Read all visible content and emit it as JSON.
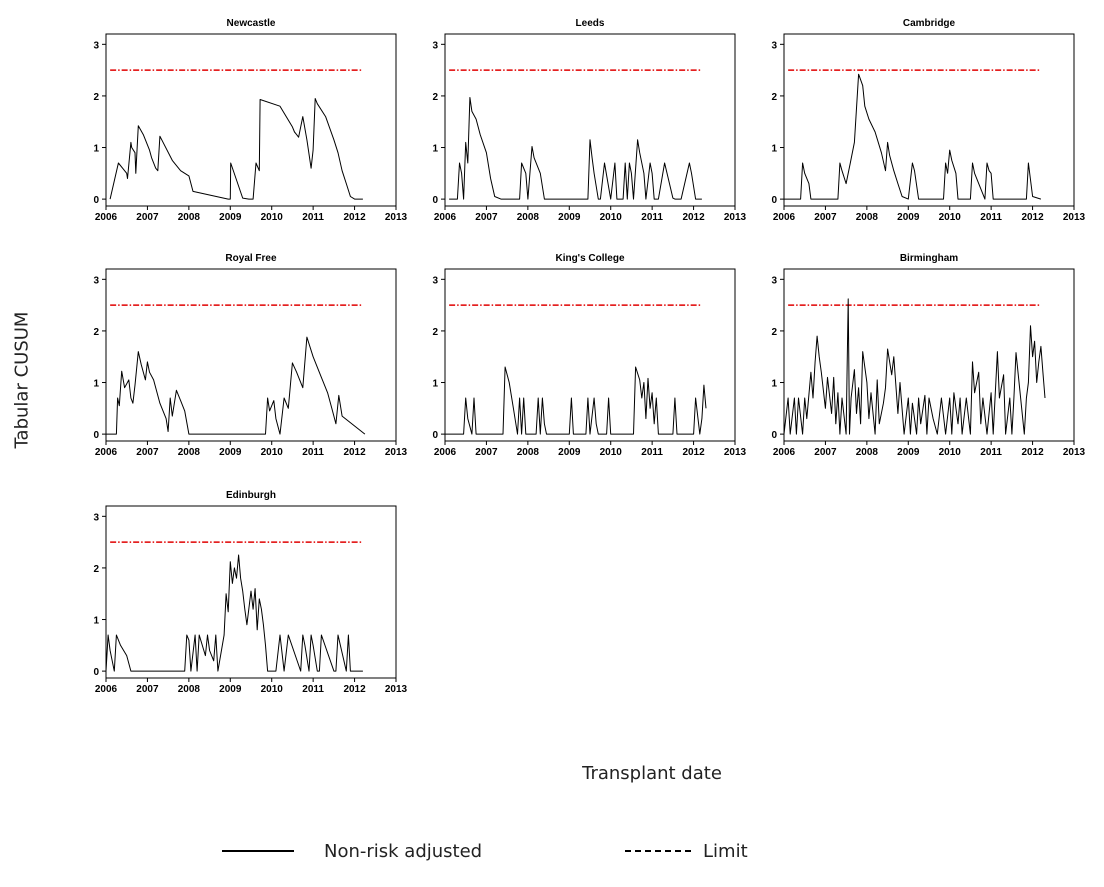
{
  "figure": {
    "ylabel": "Tabular CUSUM",
    "xlabel": "Transplant date",
    "legend": [
      {
        "label": "Non-risk adjusted",
        "style": "solid",
        "color": "#000000"
      },
      {
        "label": "Limit",
        "style": "dash-dot",
        "color": "#000000"
      }
    ],
    "limit_color": "#e00000",
    "series_color": "#000000"
  },
  "chart_data": [
    {
      "type": "line",
      "title": "Newcastle",
      "xlim": [
        2006,
        2013
      ],
      "ylim": [
        0,
        3
      ],
      "xticks": [
        2006,
        2007,
        2008,
        2009,
        2010,
        2011,
        2012,
        2013
      ],
      "yticks": [
        0,
        1,
        2,
        3
      ],
      "limit": 2.5,
      "series": [
        {
          "x": [
            2006.1,
            2006.3,
            2006.4,
            2006.5,
            2006.52,
            2006.6,
            2006.62,
            2006.7,
            2006.72,
            2006.78,
            2006.9,
            2007.05,
            2007.1,
            2007.2,
            2007.25,
            2007.3,
            2007.6,
            2007.8,
            2008.0,
            2008.1,
            2008.95,
            2009.0,
            2009.01,
            2009.3,
            2009.45,
            2009.55,
            2009.62,
            2009.7,
            2009.72,
            2010.2,
            2010.5,
            2010.55,
            2010.6,
            2010.65,
            2010.75,
            2010.85,
            2010.95,
            2011.0,
            2011.05,
            2011.1,
            2011.3,
            2011.5,
            2011.6,
            2011.7,
            2011.8,
            2011.9,
            2012.0,
            2012.2
          ],
          "y": [
            0,
            0.7,
            0.6,
            0.5,
            0.4,
            1.1,
            1.0,
            0.9,
            0.5,
            1.42,
            1.25,
            0.95,
            0.8,
            0.6,
            0.55,
            1.22,
            0.75,
            0.55,
            0.45,
            0.15,
            0,
            0,
            0.7,
            0.02,
            0,
            0,
            0.7,
            0.55,
            1.93,
            1.8,
            1.4,
            1.3,
            1.25,
            1.2,
            1.6,
            1.15,
            0.6,
            0.95,
            1.95,
            1.85,
            1.6,
            1.15,
            0.9,
            0.55,
            0.3,
            0.05,
            0,
            0
          ]
        }
      ]
    },
    {
      "type": "line",
      "title": "Leeds",
      "xlim": [
        2006,
        2013
      ],
      "ylim": [
        0,
        3
      ],
      "xticks": [
        2006,
        2007,
        2008,
        2009,
        2010,
        2011,
        2012,
        2013
      ],
      "yticks": [
        0,
        1,
        2,
        3
      ],
      "limit": 2.5,
      "series": [
        {
          "x": [
            2006.1,
            2006.3,
            2006.35,
            2006.4,
            2006.45,
            2006.5,
            2006.55,
            2006.6,
            2006.65,
            2006.75,
            2006.85,
            2007.0,
            2007.1,
            2007.2,
            2007.35,
            2007.8,
            2007.85,
            2007.95,
            2008.0,
            2008.1,
            2008.15,
            2008.3,
            2008.4,
            2009.45,
            2009.5,
            2009.55,
            2009.6,
            2009.7,
            2009.75,
            2009.85,
            2010.0,
            2010.1,
            2010.15,
            2010.3,
            2010.35,
            2010.4,
            2010.45,
            2010.5,
            2010.55,
            2010.65,
            2010.7,
            2010.8,
            2010.85,
            2010.95,
            2011.0,
            2011.05,
            2011.15,
            2011.3,
            2011.5,
            2011.55,
            2011.7,
            2011.9,
            2011.95,
            2012.05,
            2012.1,
            2012.15,
            2012.2
          ],
          "y": [
            0,
            0,
            0.7,
            0.5,
            0,
            1.1,
            0.7,
            1.97,
            1.7,
            1.55,
            1.25,
            0.9,
            0.4,
            0.05,
            0,
            0,
            0.7,
            0.5,
            0,
            1.02,
            0.8,
            0.5,
            0,
            0,
            1.15,
            0.8,
            0.5,
            0,
            0,
            0.7,
            0,
            0.7,
            0,
            0,
            0.7,
            0,
            0.7,
            0.5,
            0,
            1.15,
            0.9,
            0.5,
            0,
            0.7,
            0.5,
            0,
            0,
            0.7,
            0.02,
            0,
            0,
            0.7,
            0.5,
            0,
            0,
            0,
            0
          ]
        }
      ]
    },
    {
      "type": "line",
      "title": "Cambridge",
      "xlim": [
        2006,
        2013
      ],
      "ylim": [
        0,
        3
      ],
      "xticks": [
        2006,
        2007,
        2008,
        2009,
        2010,
        2011,
        2012,
        2013
      ],
      "yticks": [
        0,
        1,
        2,
        3
      ],
      "limit": 2.5,
      "series": [
        {
          "x": [
            2006.0,
            2006.4,
            2006.45,
            2006.5,
            2006.6,
            2006.65,
            2007.3,
            2007.35,
            2007.4,
            2007.5,
            2007.6,
            2007.7,
            2007.8,
            2007.9,
            2007.95,
            2008.05,
            2008.2,
            2008.35,
            2008.45,
            2008.5,
            2008.55,
            2008.65,
            2008.75,
            2008.85,
            2009.0,
            2009.1,
            2009.15,
            2009.25,
            2009.85,
            2009.9,
            2009.95,
            2010.0,
            2010.05,
            2010.15,
            2010.2,
            2010.5,
            2010.55,
            2010.6,
            2010.85,
            2010.9,
            2010.95,
            2011.0,
            2011.05,
            2011.85,
            2011.9,
            2012.0,
            2012.2
          ],
          "y": [
            0,
            0,
            0.7,
            0.5,
            0.3,
            0,
            0,
            0.7,
            0.55,
            0.3,
            0.7,
            1.1,
            2.42,
            2.2,
            1.8,
            1.55,
            1.3,
            0.9,
            0.55,
            1.1,
            0.85,
            0.55,
            0.3,
            0.05,
            0,
            0.7,
            0.55,
            0,
            0,
            0.7,
            0.5,
            0.95,
            0.75,
            0.5,
            0,
            0,
            0.7,
            0.5,
            0,
            0.7,
            0.55,
            0.5,
            0,
            0,
            0.7,
            0.05,
            0
          ]
        }
      ]
    },
    {
      "type": "line",
      "title": "Royal Free",
      "xlim": [
        2006,
        2013
      ],
      "ylim": [
        0,
        3
      ],
      "xticks": [
        2006,
        2007,
        2008,
        2009,
        2010,
        2011,
        2012,
        2013
      ],
      "yticks": [
        0,
        1,
        2,
        3
      ],
      "limit": 2.5,
      "series": [
        {
          "x": [
            2006.0,
            2006.25,
            2006.28,
            2006.32,
            2006.38,
            2006.45,
            2006.55,
            2006.6,
            2006.65,
            2006.7,
            2006.78,
            2006.85,
            2006.95,
            2007.0,
            2007.05,
            2007.15,
            2007.3,
            2007.45,
            2007.5,
            2007.55,
            2007.6,
            2007.7,
            2007.8,
            2007.9,
            2008.0,
            2009.85,
            2009.9,
            2009.95,
            2010.05,
            2010.1,
            2010.2,
            2010.3,
            2010.4,
            2010.5,
            2010.6,
            2010.75,
            2010.85,
            2011.0,
            2011.2,
            2011.35,
            2011.45,
            2011.55,
            2011.62,
            2011.7,
            2012.25
          ],
          "y": [
            0,
            0,
            0.7,
            0.55,
            1.22,
            0.9,
            1.05,
            0.7,
            0.6,
            0.95,
            1.6,
            1.35,
            1.05,
            1.4,
            1.2,
            1.05,
            0.6,
            0.3,
            0.05,
            0.7,
            0.35,
            0.85,
            0.65,
            0.45,
            0,
            0,
            0.7,
            0.45,
            0.65,
            0.3,
            0,
            0.7,
            0.5,
            1.38,
            1.2,
            0.9,
            1.88,
            1.5,
            1.1,
            0.8,
            0.5,
            0.2,
            0.75,
            0.35,
            0
          ]
        }
      ]
    },
    {
      "type": "line",
      "title": "King's College",
      "xlim": [
        2006,
        2013
      ],
      "ylim": [
        0,
        3
      ],
      "xticks": [
        2006,
        2007,
        2008,
        2009,
        2010,
        2011,
        2012,
        2013
      ],
      "yticks": [
        0,
        1,
        2,
        3
      ],
      "limit": 2.5,
      "series": [
        {
          "x": [
            2006.0,
            2006.45,
            2006.5,
            2006.55,
            2006.65,
            2006.7,
            2006.75,
            2007.4,
            2007.45,
            2007.55,
            2007.65,
            2007.75,
            2007.8,
            2007.85,
            2007.9,
            2007.95,
            2008.0,
            2008.2,
            2008.25,
            2008.3,
            2008.35,
            2008.4,
            2008.45,
            2009.0,
            2009.05,
            2009.1,
            2009.4,
            2009.45,
            2009.5,
            2009.6,
            2009.65,
            2009.7,
            2009.9,
            2009.95,
            2010.0,
            2010.55,
            2010.6,
            2010.7,
            2010.75,
            2010.8,
            2010.85,
            2010.9,
            2010.95,
            2011.0,
            2011.05,
            2011.1,
            2011.15,
            2011.5,
            2011.55,
            2011.6,
            2012.0,
            2012.05,
            2012.15,
            2012.2,
            2012.25,
            2012.3
          ],
          "y": [
            0,
            0,
            0.7,
            0.3,
            0,
            0.7,
            0,
            0,
            1.3,
            1.0,
            0.5,
            0,
            0.7,
            0,
            0.7,
            0,
            0,
            0,
            0.7,
            0,
            0.7,
            0.2,
            0,
            0,
            0.7,
            0,
            0,
            0.7,
            0,
            0.7,
            0.2,
            0,
            0,
            0.7,
            0,
            0,
            1.3,
            1.05,
            0.7,
            1.0,
            0.3,
            1.08,
            0.5,
            0.8,
            0.2,
            0.7,
            0,
            0,
            0.7,
            0,
            0,
            0.7,
            0,
            0.3,
            0.95,
            0.5
          ]
        }
      ]
    },
    {
      "type": "line",
      "title": "Birmingham",
      "xlim": [
        2006,
        2013
      ],
      "ylim": [
        0,
        3
      ],
      "xticks": [
        2006,
        2007,
        2008,
        2009,
        2010,
        2011,
        2012,
        2013
      ],
      "yticks": [
        0,
        1,
        2,
        3
      ],
      "limit": 2.5,
      "series": [
        {
          "x": [
            2006.0,
            2006.1,
            2006.15,
            2006.25,
            2006.3,
            2006.35,
            2006.45,
            2006.5,
            2006.55,
            2006.65,
            2006.7,
            2006.75,
            2006.8,
            2006.85,
            2006.9,
            2007.0,
            2007.05,
            2007.15,
            2007.2,
            2007.25,
            2007.3,
            2007.35,
            2007.4,
            2007.5,
            2007.55,
            2007.58,
            2007.62,
            2007.7,
            2007.75,
            2007.8,
            2007.85,
            2007.9,
            2008.0,
            2008.05,
            2008.1,
            2008.2,
            2008.25,
            2008.3,
            2008.4,
            2008.45,
            2008.5,
            2008.6,
            2008.65,
            2008.75,
            2008.8,
            2008.9,
            2009.0,
            2009.05,
            2009.1,
            2009.2,
            2009.25,
            2009.3,
            2009.4,
            2009.45,
            2009.5,
            2009.6,
            2009.7,
            2009.8,
            2009.9,
            2010.0,
            2010.05,
            2010.1,
            2010.2,
            2010.25,
            2010.3,
            2010.4,
            2010.5,
            2010.55,
            2010.6,
            2010.7,
            2010.75,
            2010.8,
            2010.9,
            2011.0,
            2011.05,
            2011.15,
            2011.2,
            2011.3,
            2011.35,
            2011.45,
            2011.5,
            2011.55,
            2011.6,
            2011.7,
            2011.8,
            2011.85,
            2011.9,
            2011.95,
            2012.0,
            2012.05,
            2012.1,
            2012.15,
            2012.2,
            2012.25,
            2012.3
          ],
          "y": [
            0,
            0.7,
            0,
            0.7,
            0,
            0.7,
            0,
            0.7,
            0.3,
            1.2,
            0.7,
            1.4,
            1.9,
            1.5,
            1.2,
            0.5,
            1.1,
            0.4,
            1.1,
            0.2,
            0.8,
            0,
            0.7,
            0,
            2.62,
            0,
            0.7,
            1.25,
            0.4,
            0.9,
            0.2,
            1.6,
            1.0,
            0.3,
            0.8,
            0,
            1.05,
            0.2,
            0.6,
            0.9,
            1.65,
            1.15,
            1.5,
            0.4,
            1.0,
            0,
            0.7,
            0,
            0.6,
            0,
            0.7,
            0.2,
            0.75,
            0,
            0.7,
            0.3,
            0,
            0.7,
            0,
            0.7,
            0,
            0.8,
            0.2,
            0.7,
            0,
            0.7,
            0,
            1.4,
            0.8,
            1.2,
            0.2,
            0.7,
            0,
            0.8,
            0,
            1.6,
            0.7,
            1.15,
            0,
            0.7,
            0,
            0.7,
            1.58,
            0.8,
            0,
            0.7,
            1.0,
            2.1,
            1.5,
            1.8,
            1.0,
            1.4,
            1.7,
            1.2,
            0.7
          ]
        }
      ]
    },
    {
      "type": "line",
      "title": "Edinburgh",
      "xlim": [
        2006,
        2013
      ],
      "ylim": [
        0,
        3
      ],
      "xticks": [
        2006,
        2007,
        2008,
        2009,
        2010,
        2011,
        2012,
        2013
      ],
      "yticks": [
        0,
        1,
        2,
        3
      ],
      "limit": 2.5,
      "series": [
        {
          "x": [
            2006.0,
            2006.05,
            2006.1,
            2006.15,
            2006.2,
            2006.25,
            2006.35,
            2006.5,
            2006.6,
            2007.9,
            2007.95,
            2008.0,
            2008.05,
            2008.15,
            2008.2,
            2008.25,
            2008.4,
            2008.45,
            2008.5,
            2008.6,
            2008.65,
            2008.7,
            2008.85,
            2008.9,
            2008.95,
            2009.0,
            2009.05,
            2009.1,
            2009.15,
            2009.2,
            2009.25,
            2009.3,
            2009.35,
            2009.4,
            2009.5,
            2009.55,
            2009.6,
            2009.65,
            2009.7,
            2009.75,
            2009.8,
            2009.85,
            2009.9,
            2010.0,
            2010.1,
            2010.2,
            2010.3,
            2010.4,
            2010.7,
            2010.75,
            2010.8,
            2010.9,
            2010.95,
            2011.0,
            2011.1,
            2011.15,
            2011.2,
            2011.5,
            2011.55,
            2011.6,
            2011.8,
            2011.85,
            2011.9,
            2012.0,
            2012.2
          ],
          "y": [
            0,
            0.7,
            0.4,
            0.2,
            0,
            0.7,
            0.5,
            0.3,
            0,
            0,
            0.7,
            0.6,
            0,
            0.7,
            0,
            0.7,
            0.3,
            0.7,
            0.4,
            0.2,
            0.7,
            0,
            0.7,
            1.5,
            1.15,
            2.12,
            1.7,
            2.0,
            1.8,
            2.25,
            1.8,
            1.55,
            1.2,
            0.9,
            1.55,
            1.2,
            1.6,
            0.8,
            1.4,
            1.2,
            0.9,
            0.5,
            0,
            0,
            0,
            0.7,
            0,
            0.7,
            0,
            0.7,
            0.5,
            0,
            0.7,
            0.5,
            0,
            0,
            0.7,
            0,
            0,
            0.7,
            0,
            0.7,
            0,
            0,
            0
          ]
        }
      ]
    }
  ]
}
